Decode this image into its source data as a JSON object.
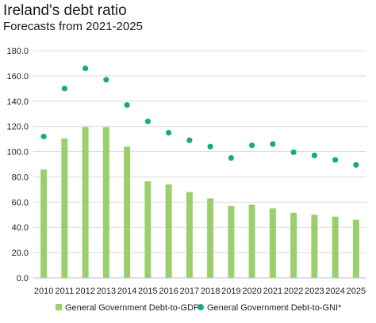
{
  "header": {
    "title": "Ireland's debt ratio",
    "subtitle": "Forecasts from 2021-2025"
  },
  "colors": {
    "bar": "#9bcf6c",
    "dot": "#17a98a",
    "gridline": "#d9d9d9",
    "axis": "#bfbfbf"
  },
  "chart_data": {
    "type": "bar",
    "title": "Ireland's debt ratio",
    "subtitle": "Forecasts from 2021-2025",
    "xlabel": "",
    "ylabel": "",
    "ylim": [
      0,
      180
    ],
    "yticks": [
      "0.0",
      "20.0",
      "40.0",
      "60.0",
      "80.0",
      "100.0",
      "120.0",
      "140.0",
      "160.0",
      "180.0"
    ],
    "grid": true,
    "legend_position": "bottom",
    "categories": [
      "2010",
      "2011",
      "2012",
      "2013",
      "2014",
      "2015",
      "2016",
      "2017",
      "2018",
      "2019",
      "2020",
      "2021",
      "2022",
      "2023",
      "2024",
      "2025"
    ],
    "series": [
      {
        "name": "General Government Debt-to-GDP",
        "type": "bar",
        "values": [
          86,
          110.5,
          119.5,
          119.5,
          104,
          76.5,
          74,
          68,
          63,
          57,
          58,
          55,
          51.5,
          50,
          48.5,
          46
        ]
      },
      {
        "name": "General Government Debt-to-GNI*",
        "type": "scatter",
        "values": [
          112,
          150,
          166,
          157,
          137,
          124,
          115,
          109,
          104,
          95,
          105,
          106,
          99.5,
          97,
          93.5,
          89.5
        ]
      }
    ]
  }
}
